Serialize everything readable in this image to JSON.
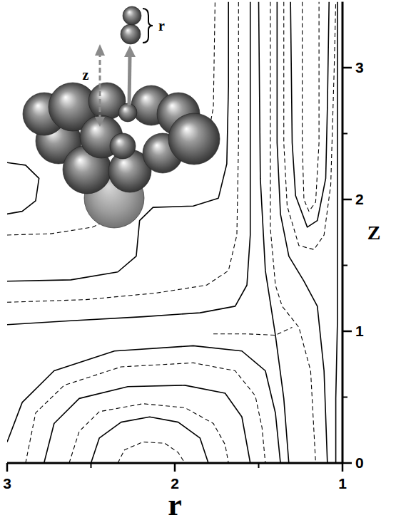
{
  "chart_data": {
    "type": "contour",
    "color": "#000000",
    "xlabel": "r",
    "ylabel": "Z",
    "xlim": [
      3,
      1
    ],
    "xticks": [
      3,
      2,
      1
    ],
    "ylim": [
      0,
      3.5
    ],
    "yticks": [
      0,
      1,
      2,
      3
    ],
    "annotations": [
      "r",
      "z"
    ],
    "series": [
      {
        "line_style": "dashed",
        "x": [
          2.34,
          2.3,
          2.19,
          2.06,
          1.98,
          1.94
        ],
        "values": [
          0,
          0.1,
          0.16,
          0.15,
          0.08,
          0
        ]
      },
      {
        "line_style": "solid",
        "x": [
          2.5,
          2.45,
          2.32,
          2.15,
          1.98,
          1.85,
          1.8
        ],
        "values": [
          0,
          0.19,
          0.31,
          0.35,
          0.31,
          0.19,
          0
        ]
      },
      {
        "line_style": "dashed",
        "x": [
          2.63,
          2.57,
          2.45,
          2.19,
          1.94,
          1.77,
          1.7,
          1.68
        ],
        "values": [
          0,
          0.24,
          0.39,
          0.45,
          0.42,
          0.3,
          0.14,
          0
        ]
      },
      {
        "line_style": "solid",
        "x": [
          2.78,
          2.72,
          2.57,
          2.28,
          1.94,
          1.7,
          1.6,
          1.55
        ],
        "values": [
          0,
          0.3,
          0.49,
          0.58,
          0.59,
          0.53,
          0.35,
          0
        ]
      },
      {
        "line_style": "dashed",
        "x": [
          2.89,
          2.83,
          2.66,
          2.32,
          1.89,
          1.64,
          1.52,
          1.48,
          1.46
        ],
        "values": [
          0,
          0.38,
          0.59,
          0.73,
          0.76,
          0.7,
          0.51,
          0.27,
          0
        ]
      },
      {
        "line_style": "solid",
        "x": [
          3,
          2.91,
          2.72,
          2.36,
          1.89,
          1.6,
          1.46,
          1.4,
          1.37
        ],
        "values": [
          0.16,
          0.46,
          0.7,
          0.85,
          0.89,
          0.85,
          0.7,
          0.38,
          0
        ]
      },
      {
        "line_style": "solid",
        "x": [
          3,
          2.62,
          2.19,
          1.85,
          1.64,
          1.57,
          1.55,
          1.55,
          1.55
        ],
        "values": [
          1.05,
          1.08,
          1.11,
          1.14,
          1.19,
          1.35,
          1.73,
          2.43,
          3.5
        ]
      },
      {
        "line_style": "dashed",
        "x": [
          3,
          2.53,
          2.11,
          1.81,
          1.68,
          1.63,
          1.62,
          1.62
        ],
        "values": [
          1.22,
          1.24,
          1.29,
          1.35,
          1.46,
          1.73,
          2.43,
          3.5
        ]
      },
      {
        "line_style": "solid",
        "x": [
          3,
          2.62,
          2.34,
          2.23,
          2.21,
          2.13,
          1.89,
          1.74,
          1.69,
          1.68,
          1.68
        ],
        "values": [
          1.38,
          1.39,
          1.45,
          1.57,
          1.84,
          1.94,
          1.95,
          2.01,
          2.27,
          2.86,
          3.5
        ]
      },
      {
        "line_style": "solid",
        "x": [
          3,
          2.89,
          2.81,
          2.83,
          2.91,
          3
        ],
        "values": [
          2.28,
          2.26,
          2.16,
          1.99,
          1.91,
          1.89
        ]
      },
      {
        "line_style": "dashed",
        "x": [
          3,
          2.74,
          2.49,
          2.32,
          2.28,
          2.23,
          2.13,
          1.94,
          1.81,
          1.77,
          1.76
        ],
        "values": [
          1.73,
          1.74,
          1.79,
          1.89,
          2.05,
          2.22,
          2.32,
          2.35,
          2.43,
          2.7,
          3.5
        ]
      },
      {
        "line_style": "solid",
        "x": [
          1.5,
          1.49,
          1.46,
          1.4,
          1.35,
          1.32
        ],
        "values": [
          3.5,
          2.16,
          1.46,
          0.97,
          0.49,
          0
        ]
      },
      {
        "line_style": "dashed",
        "x": [
          1.77,
          1.57,
          1.4,
          1.3
        ],
        "values": [
          0.98,
          0.98,
          0.97,
          1.03
        ]
      },
      {
        "line_style": "dashed",
        "x": [
          1.43,
          1.43,
          1.43,
          1.4,
          1.36,
          1.26,
          1.19,
          1.16
        ],
        "values": [
          3.5,
          2.43,
          1.78,
          1.35,
          1.19,
          1.03,
          0.7,
          0
        ]
      },
      {
        "line_style": "solid",
        "x": [
          1.39,
          1.39,
          1.37,
          1.32,
          1.23,
          1.15,
          1.11,
          1.09
        ],
        "values": [
          3.5,
          2.43,
          1.89,
          1.57,
          1.38,
          1.19,
          0.7,
          0
        ]
      },
      {
        "line_style": "dashed",
        "x": [
          1.35,
          1.35,
          1.33,
          1.26,
          1.17,
          1.11,
          1.07,
          1.05,
          1.04
        ],
        "values": [
          3.5,
          2.43,
          1.95,
          1.65,
          1.62,
          1.73,
          2.11,
          2.97,
          3.5
        ]
      },
      {
        "line_style": "solid",
        "x": [
          1.31,
          1.3,
          1.28,
          1.21,
          1.15,
          1.1,
          1.09,
          1.08
        ],
        "values": [
          3.5,
          2.43,
          2.03,
          1.79,
          1.84,
          2.16,
          2.7,
          3.5
        ]
      },
      {
        "line_style": "dashed",
        "x": [
          1.24,
          1.24,
          1.23,
          1.2,
          1.16,
          1.14,
          1.14
        ],
        "values": [
          3.5,
          2.43,
          2.0,
          1.91,
          1.98,
          2.43,
          3.5
        ]
      },
      {
        "line_style": "solid",
        "x": [
          1.03,
          1.03,
          1.03,
          1.04,
          1.04
        ],
        "values": [
          3.5,
          1.89,
          1.08,
          0.49,
          0
        ]
      }
    ]
  }
}
